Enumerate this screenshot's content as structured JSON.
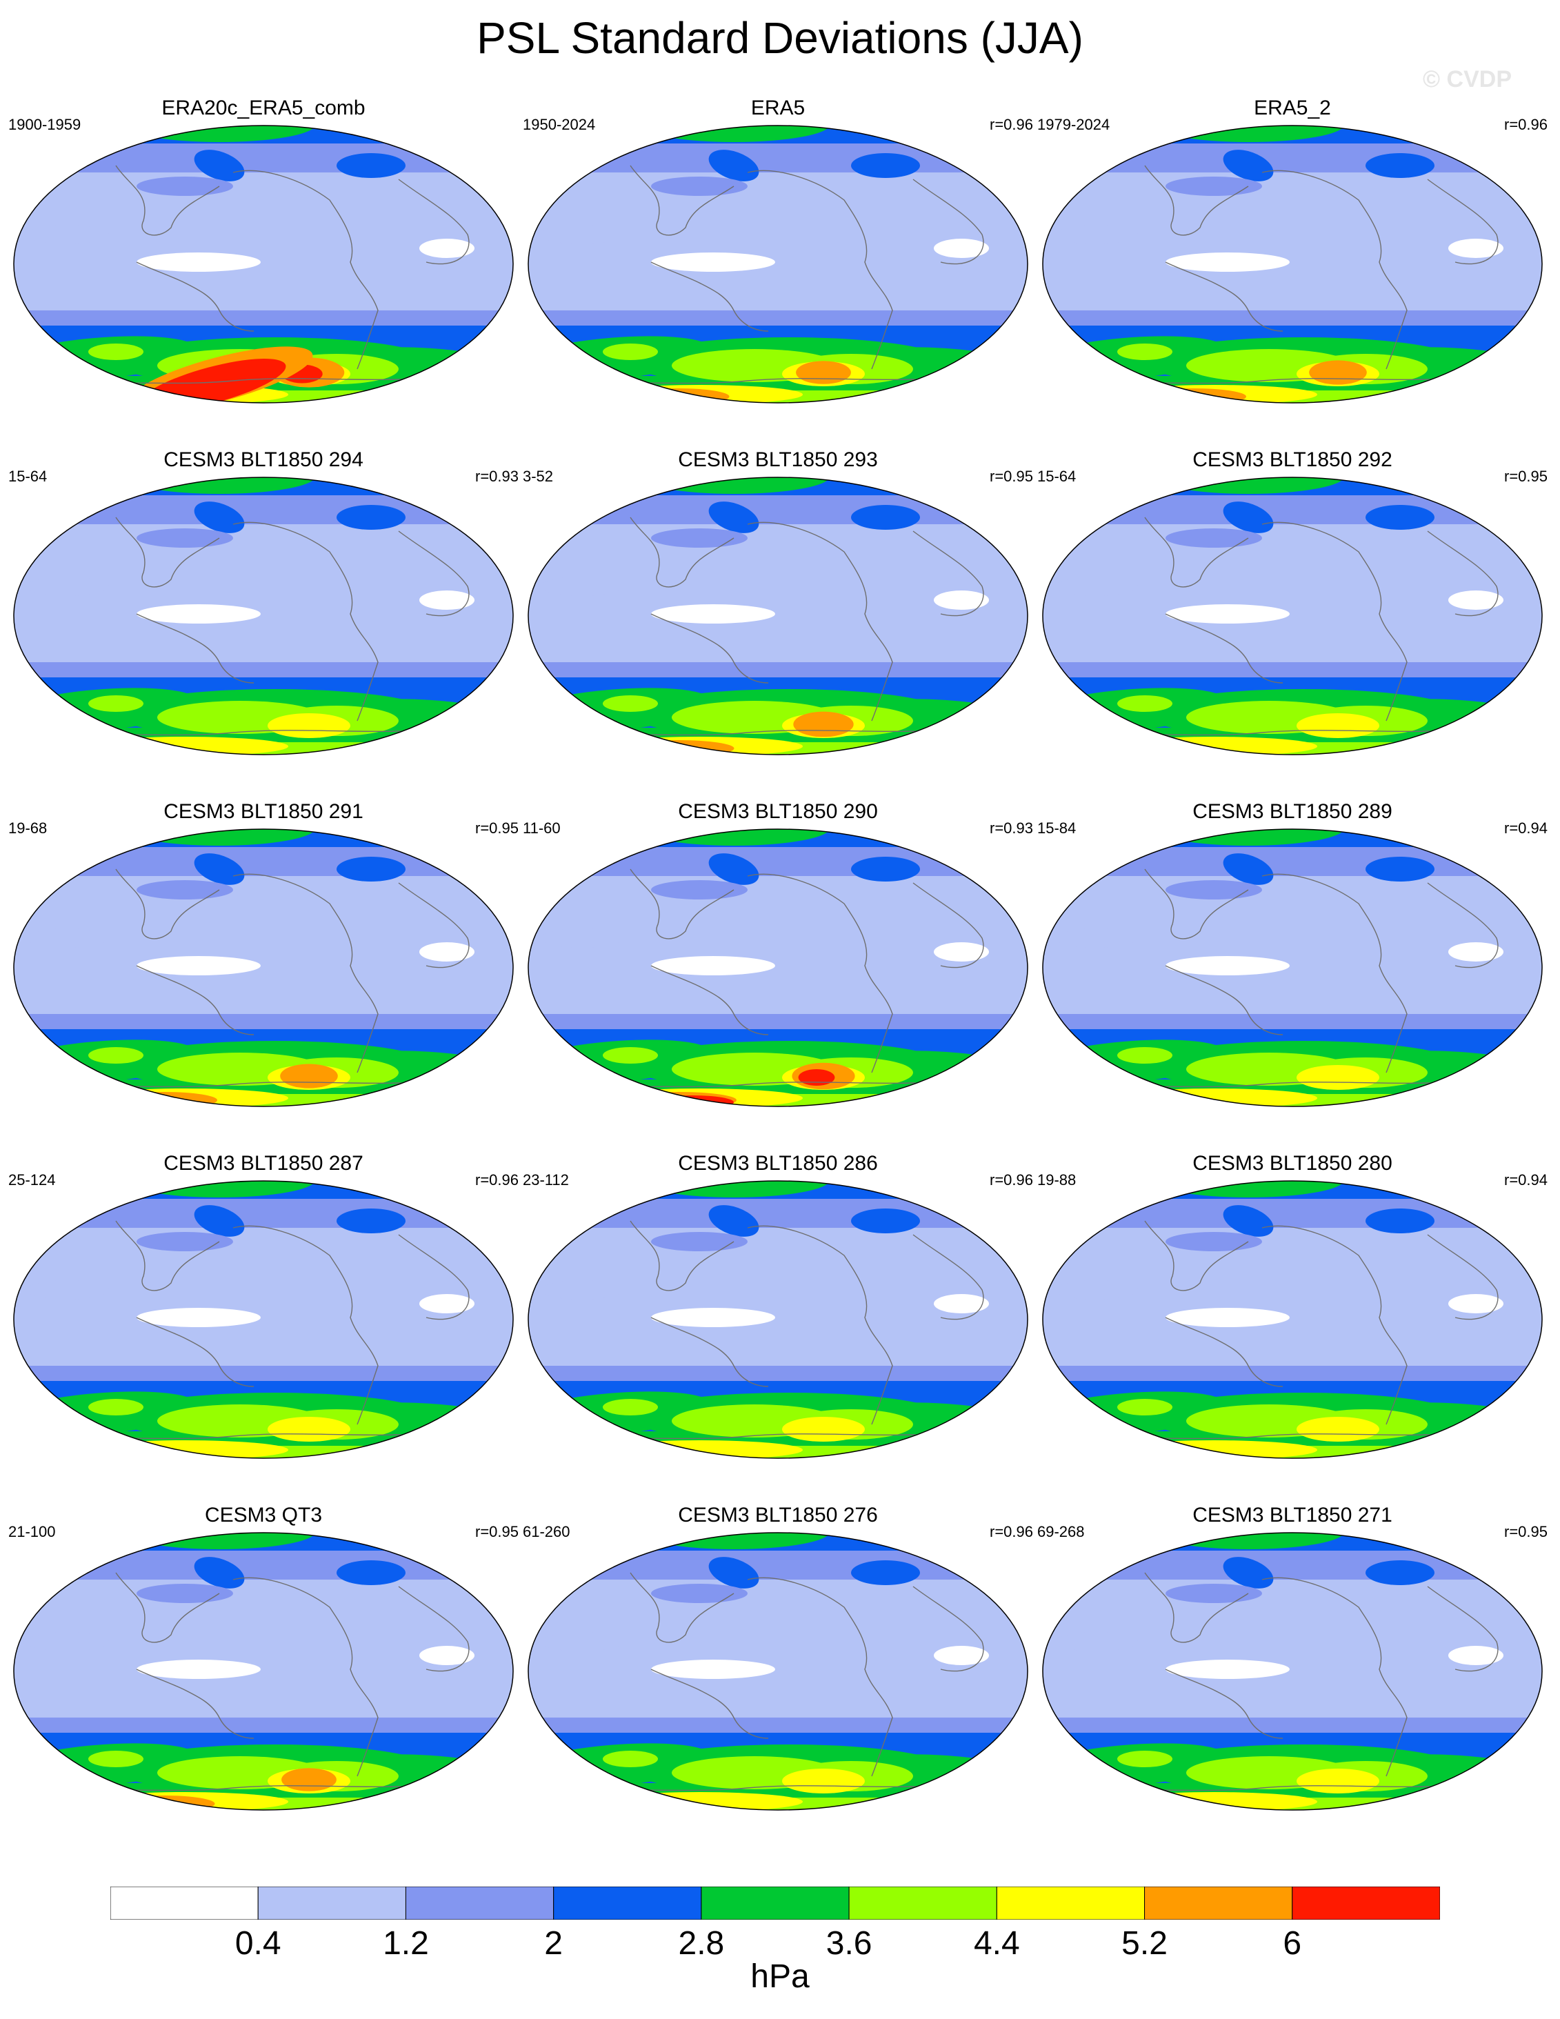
{
  "title": "PSL Standard Deviations (JJA)",
  "watermark": "© CVDP",
  "colors": {
    "levels": [
      "#ffffff",
      "#b4c3f6",
      "#8396f0",
      "#0a5ef0",
      "#00c832",
      "#96ff00",
      "#ffff00",
      "#ff9b00",
      "#ff1a00"
    ],
    "coast": "#6e6e6e"
  },
  "panels": [
    {
      "title": "ERA20c_ERA5_comb",
      "years": "1900-1959",
      "r": "",
      "intensity": 1.35
    },
    {
      "title": "ERA5",
      "years": "1950-2024",
      "r": "r=0.96",
      "intensity": 1.05
    },
    {
      "title": "ERA5_2",
      "years": "1979-2024",
      "r": "r=0.96",
      "intensity": 1.1
    },
    {
      "title": "CESM3 BLT1850 294",
      "years": "15-64",
      "r": "r=0.93",
      "intensity": 0.85
    },
    {
      "title": "CESM3 BLT1850 293",
      "years": "3-52",
      "r": "r=0.95",
      "intensity": 1.15
    },
    {
      "title": "CESM3 BLT1850 292",
      "years": "15-64",
      "r": "r=0.95",
      "intensity": 0.95
    },
    {
      "title": "CESM3 BLT1850 291",
      "years": "19-68",
      "r": "r=0.95",
      "intensity": 1.1
    },
    {
      "title": "CESM3 BLT1850 290",
      "years": "11-60",
      "r": "r=0.93",
      "intensity": 1.2
    },
    {
      "title": "CESM3 BLT1850 289",
      "years": "15-84",
      "r": "r=0.94",
      "intensity": 0.95
    },
    {
      "title": "CESM3 BLT1850 287",
      "years": "25-124",
      "r": "r=0.96",
      "intensity": 1.0
    },
    {
      "title": "CESM3 BLT1850 286",
      "years": "23-112",
      "r": "r=0.96",
      "intensity": 1.0
    },
    {
      "title": "CESM3 BLT1850 280",
      "years": "19-88",
      "r": "r=0.94",
      "intensity": 1.0
    },
    {
      "title": "CESM3 QT3",
      "years": "21-100",
      "r": "r=0.95",
      "intensity": 1.05
    },
    {
      "title": "CESM3 BLT1850 276",
      "years": "61-260",
      "r": "r=0.96",
      "intensity": 1.0
    },
    {
      "title": "CESM3 BLT1850 271",
      "years": "69-268",
      "r": "r=0.95",
      "intensity": 1.0
    }
  ],
  "colorbar": {
    "ticks": [
      "0.4",
      "1.2",
      "2",
      "2.8",
      "3.6",
      "4.4",
      "5.2",
      "6"
    ],
    "unit": "hPa"
  }
}
